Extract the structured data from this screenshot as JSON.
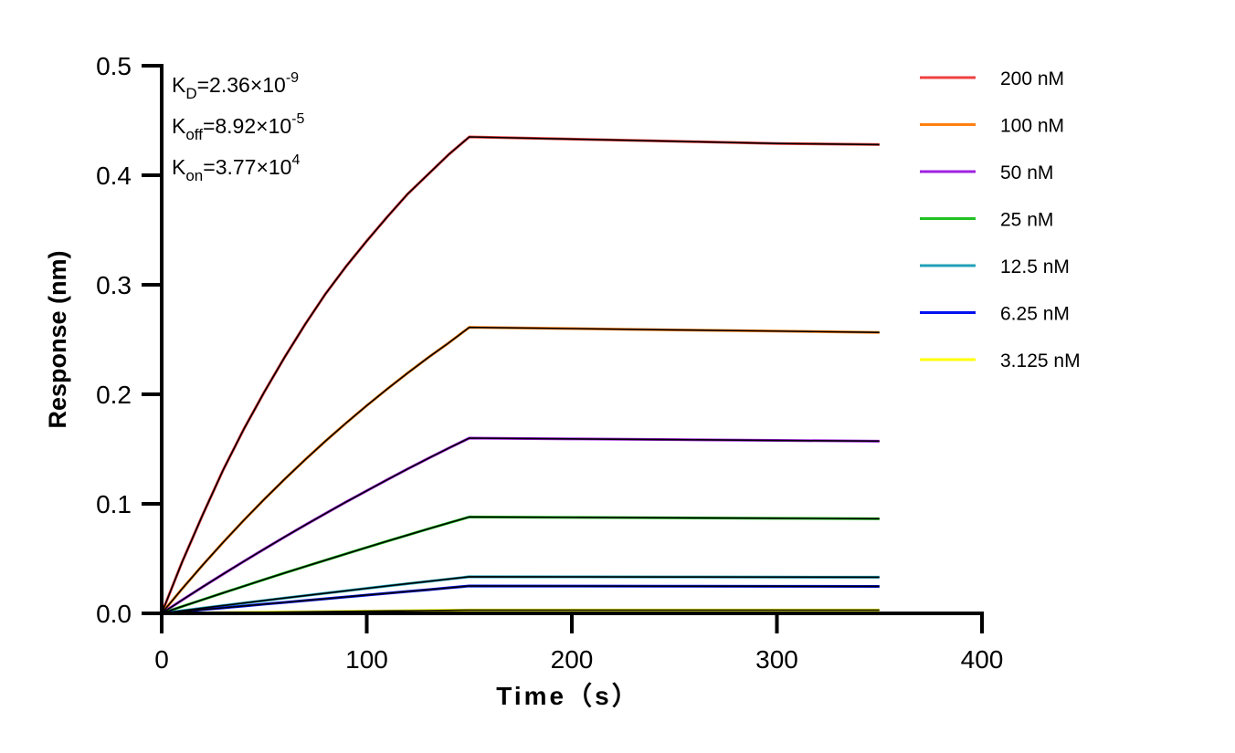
{
  "chart_data": {
    "type": "line",
    "xlabel": "Time（s）",
    "ylabel": "Response (nm)",
    "xlim": [
      0,
      400
    ],
    "ylim": [
      0,
      0.5
    ],
    "xticks": [
      0,
      100,
      200,
      300,
      400
    ],
    "yticks": [
      "0.0",
      "0.1",
      "0.2",
      "0.3",
      "0.4",
      "0.5"
    ],
    "grid": false,
    "legend_position": "right",
    "annotations": [
      {
        "base": "K",
        "sub": "D",
        "value": "=2.36×10",
        "exp": "-9"
      },
      {
        "base": "K",
        "sub": "off",
        "value": "=8.92×10",
        "exp": "-5"
      },
      {
        "base": "K",
        "sub": "on",
        "value": "=3.77×10",
        "exp": "4"
      }
    ],
    "x": [
      0,
      10,
      20,
      30,
      40,
      50,
      60,
      70,
      80,
      90,
      100,
      110,
      120,
      130,
      140,
      150,
      200,
      250,
      300,
      350
    ],
    "series": [
      {
        "name": "200 nM",
        "color": "#ef4040",
        "values": [
          0,
          0.047,
          0.09,
          0.131,
          0.168,
          0.202,
          0.234,
          0.264,
          0.292,
          0.317,
          0.34,
          0.362,
          0.383,
          0.401,
          0.419,
          0.435,
          0.433,
          0.431,
          0.429,
          0.428
        ]
      },
      {
        "name": "100 nM",
        "color": "#ff8010",
        "values": [
          0,
          0.0225,
          0.0441,
          0.0649,
          0.0849,
          0.1041,
          0.1226,
          0.1404,
          0.1575,
          0.1739,
          0.1897,
          0.2049,
          0.2195,
          0.2336,
          0.247,
          0.2611,
          0.26,
          0.2588,
          0.2577,
          0.2565
        ]
      },
      {
        "name": "50 nM",
        "color": "#a020e0",
        "values": [
          0,
          0.0122,
          0.0242,
          0.0359,
          0.0474,
          0.0587,
          0.0698,
          0.0807,
          0.0913,
          0.1018,
          0.1119,
          0.122,
          0.1319,
          0.1415,
          0.1509,
          0.16,
          0.1593,
          0.1586,
          0.1579,
          0.1572
        ]
      },
      {
        "name": "25 nM",
        "color": "#20c020",
        "values": [
          0,
          0.0063,
          0.0125,
          0.0187,
          0.0248,
          0.0309,
          0.0369,
          0.0428,
          0.0486,
          0.0544,
          0.0602,
          0.0659,
          0.0715,
          0.0771,
          0.0826,
          0.088,
          0.0876,
          0.0872,
          0.0868,
          0.0864
        ]
      },
      {
        "name": "12.5 nM",
        "color": "#20a0b8",
        "values": [
          0,
          0.0024,
          0.0048,
          0.0071,
          0.0094,
          0.0117,
          0.014,
          0.0162,
          0.0184,
          0.0206,
          0.0228,
          0.025,
          0.0271,
          0.0292,
          0.0313,
          0.0334,
          0.0333,
          0.0332,
          0.0331,
          0.033
        ]
      },
      {
        "name": "6.25 nM",
        "color": "#0010f0",
        "values": [
          0,
          0.0017,
          0.0034,
          0.005,
          0.0067,
          0.0084,
          0.01,
          0.0117,
          0.0133,
          0.015,
          0.0167,
          0.0183,
          0.02,
          0.0216,
          0.0233,
          0.025,
          0.0249,
          0.0248,
          0.0247,
          0.0246
        ]
      },
      {
        "name": "3.125 nM",
        "color": "#ffff00",
        "values": [
          0,
          0.0002,
          0.0004,
          0.0006,
          0.0008,
          0.001,
          0.0012,
          0.0014,
          0.0016,
          0.0018,
          0.002,
          0.0022,
          0.0024,
          0.0026,
          0.0028,
          0.003,
          0.003,
          0.003,
          0.003,
          0.003
        ]
      }
    ],
    "fit_color": "#000000"
  }
}
